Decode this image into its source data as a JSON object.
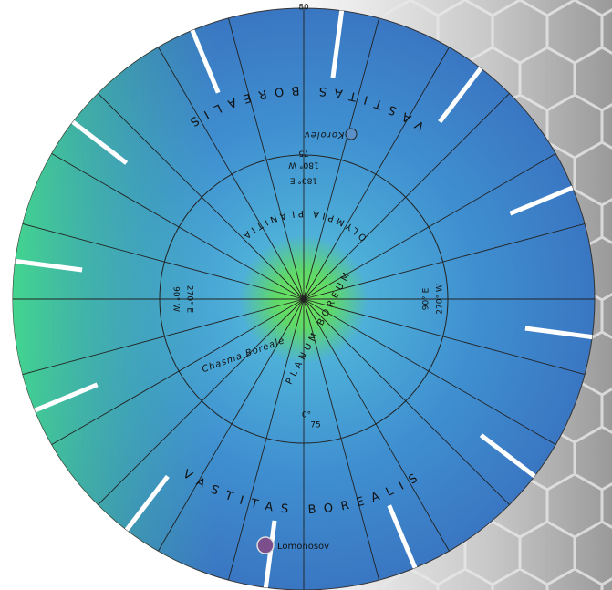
{
  "grid_labels": {
    "lat_80": "80",
    "lat_75_top": "75",
    "lon_180_e": "180° E",
    "lon_180_w": "180° W",
    "lon_270_e": "270° E",
    "lon_90_w": "90° W",
    "lon_90_e": "90° E",
    "lon_270_w": "270° W",
    "lon_0": "0°",
    "lat_75_bottom": "75"
  },
  "features": {
    "vastitas_top": "VASTITAS BOREALIS",
    "korolev": "Korolev",
    "olympia": "OLYMPIA PLANITIA",
    "chasma": "Chasma Boreale",
    "planum": "PLANUM BOREUM",
    "vastitas_bottom": "VASTITAS BOREALIS",
    "lomonosov": "Lomonosov"
  }
}
